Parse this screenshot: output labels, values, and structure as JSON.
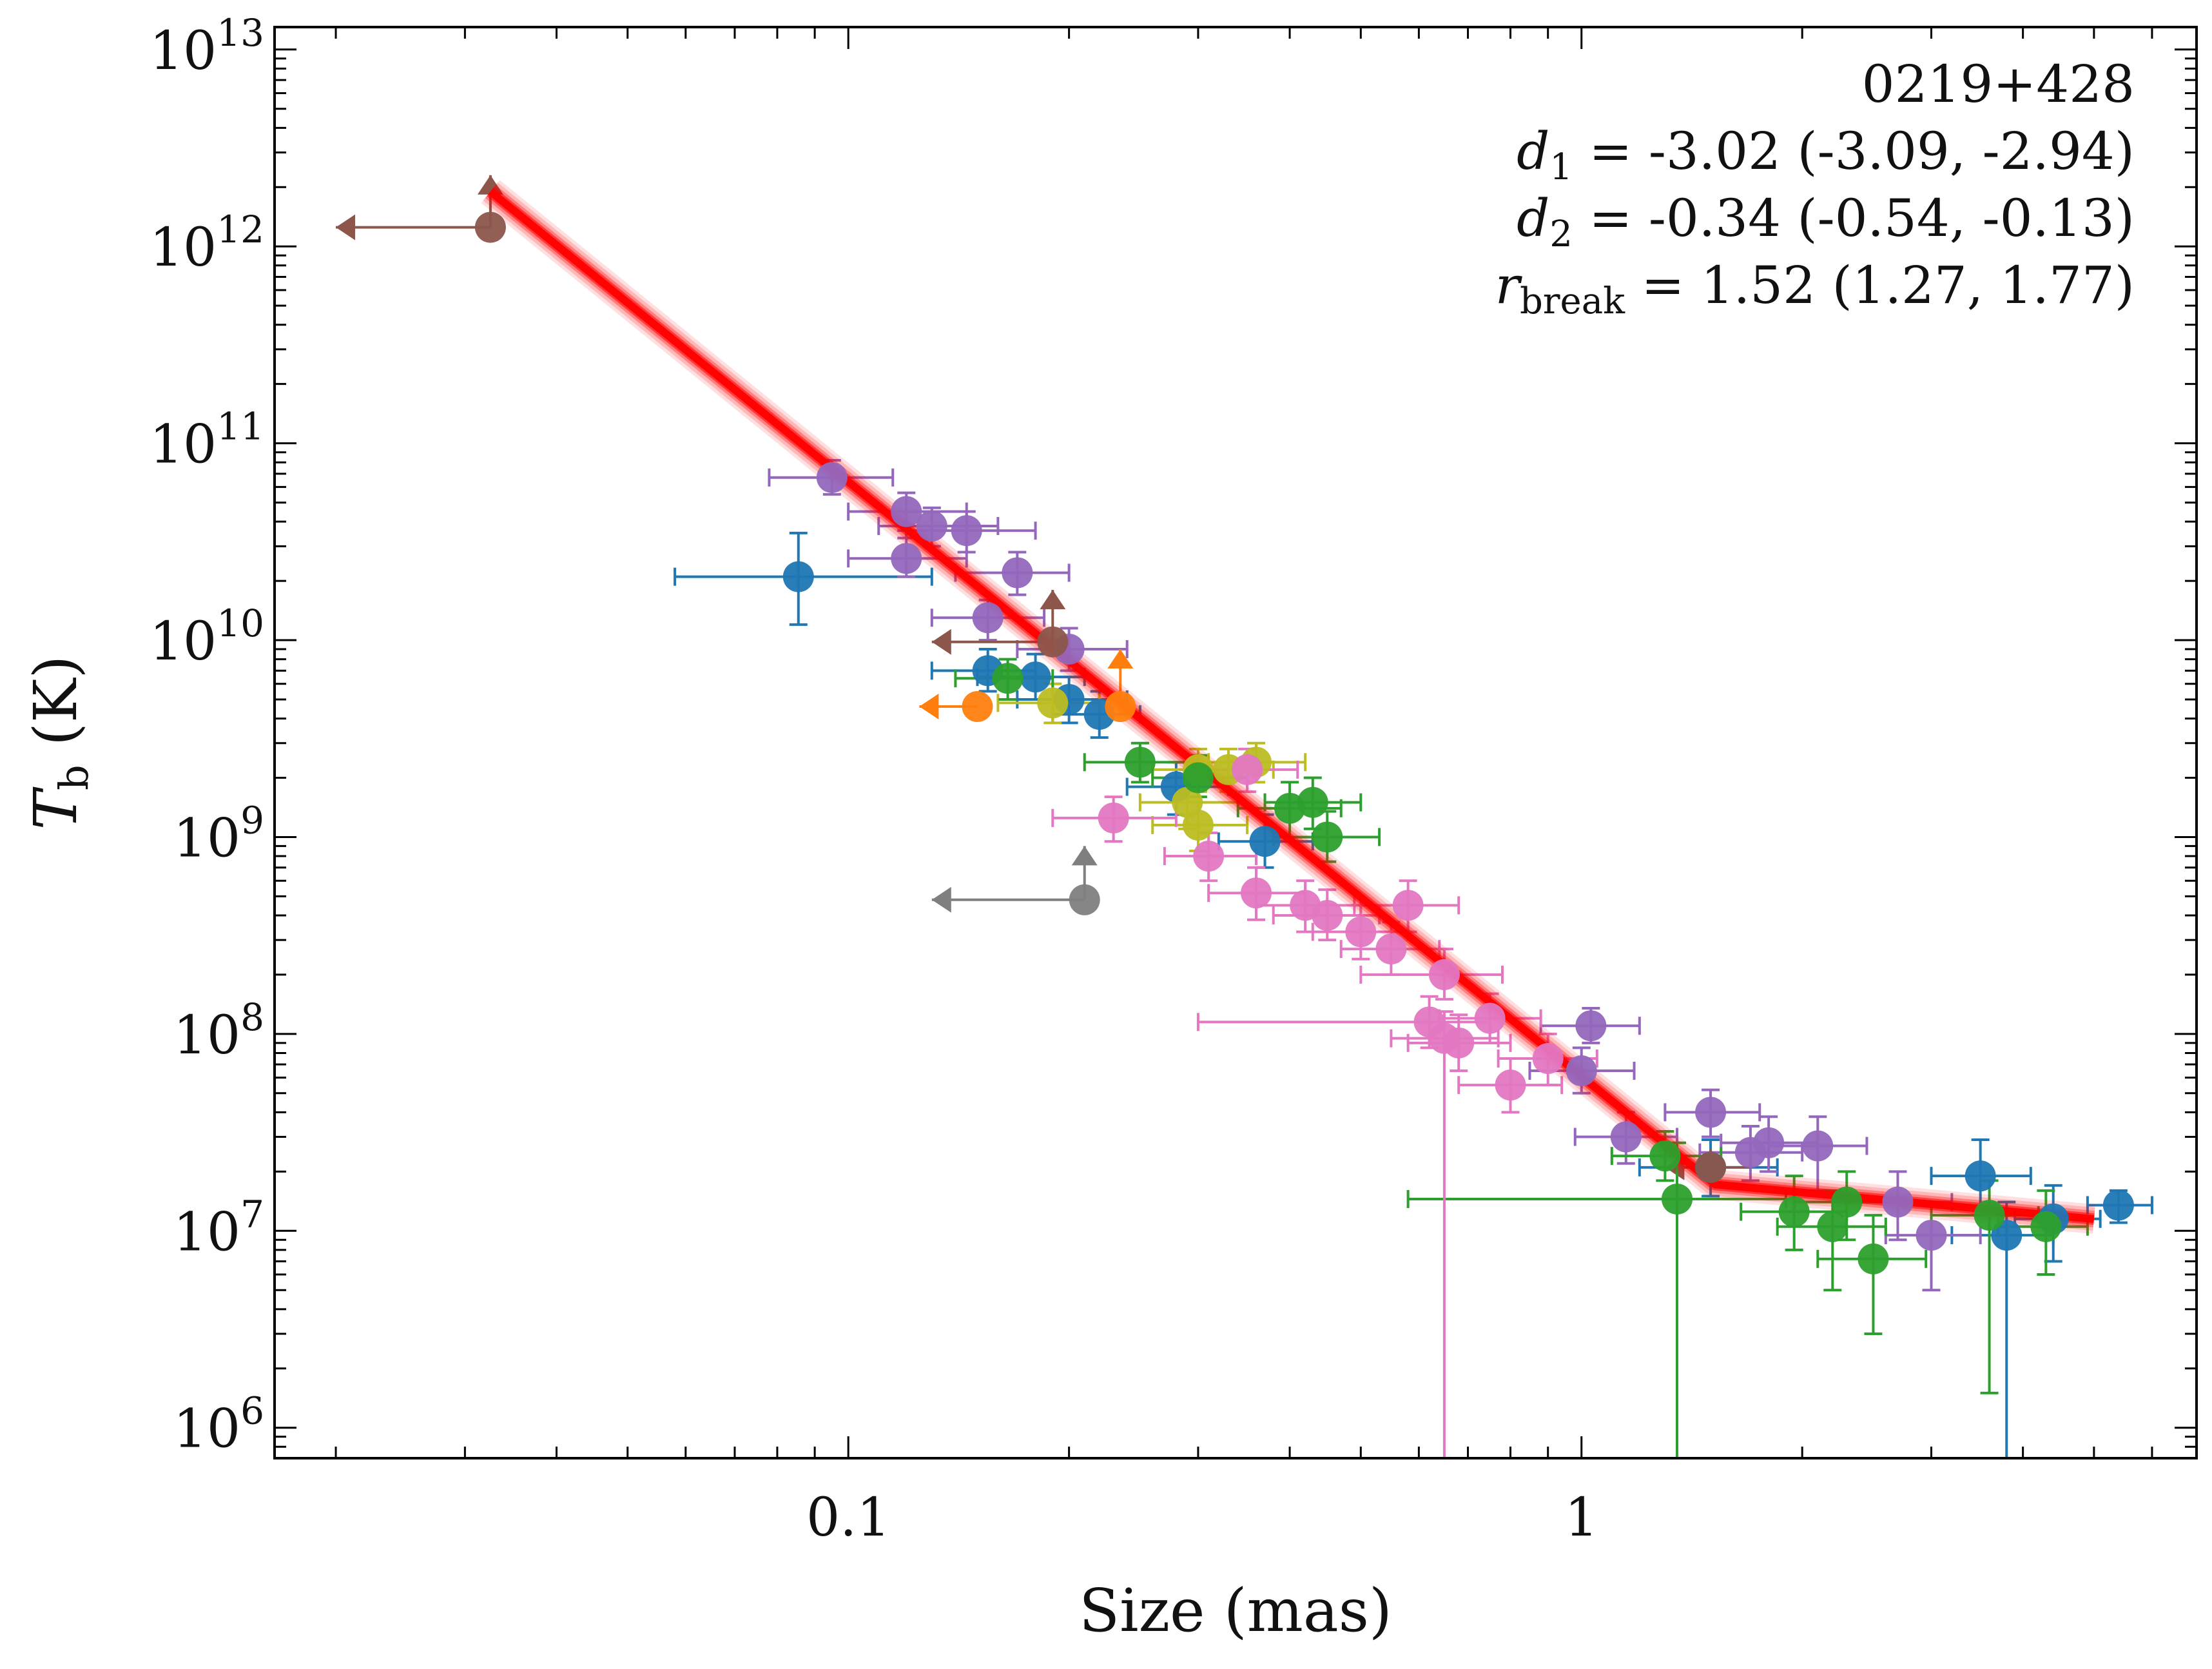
{
  "chart_data": {
    "type": "scatter",
    "title": "",
    "xlabel": "Size (mas)",
    "ylabel_symbol": "T",
    "ylabel_subscript": "b",
    "ylabel_unit": "(K)",
    "xscale": "log",
    "yscale": "log",
    "xlim": [
      0.0165,
      6.9
    ],
    "ylim": [
      700000,
      13000000000000
    ],
    "x_ticks": [
      {
        "value": 0.1,
        "label": "0.1"
      },
      {
        "value": 1,
        "label": "1"
      }
    ],
    "y_ticks": [
      {
        "value": 1000000,
        "base": "10",
        "exp": "6"
      },
      {
        "value": 10000000,
        "base": "10",
        "exp": "7"
      },
      {
        "value": 100000000,
        "base": "10",
        "exp": "8"
      },
      {
        "value": 1000000000,
        "base": "10",
        "exp": "9"
      },
      {
        "value": 10000000000,
        "base": "10",
        "exp": "10"
      },
      {
        "value": 100000000000,
        "base": "10",
        "exp": "11"
      },
      {
        "value": 1000000000000,
        "base": "10",
        "exp": "12"
      },
      {
        "value": 10000000000000,
        "base": "10",
        "exp": "13"
      }
    ],
    "annotation": {
      "source": "0219+428",
      "d1": {
        "sym": "d",
        "sub": "1",
        "text": " = -3.02 (-3.09, -2.94)"
      },
      "d2": {
        "sym": "d",
        "sub": "2",
        "text": " = -0.34 (-0.54, -0.13)"
      },
      "rbreak": {
        "sym": "r",
        "sub": "break",
        "text": " = 1.52 (1.27, 1.77)"
      }
    },
    "fit": {
      "model": "broken power law",
      "d1": -3.02,
      "d2": -0.34,
      "r_break": 1.52,
      "x_start": 0.0325,
      "x_end": 5.0,
      "y_start": 1900000000000,
      "color": "#ff0000"
    },
    "grid": false,
    "legend": "none",
    "series": [
      {
        "color": "#1f77b4",
        "points": [
          [
            0.0855,
            21000000000,
            0.058,
            0.13,
            12000000000,
            35000000000
          ],
          [
            0.18,
            6500000000,
            0.15,
            0.21,
            5000000000,
            8500000000
          ],
          [
            0.2,
            5000000000,
            0.17,
            0.24,
            3800000000,
            6500000000
          ],
          [
            0.22,
            4200000000,
            0.19,
            0.25,
            3200000000,
            5500000000
          ],
          [
            0.155,
            7000000000,
            0.13,
            0.18,
            5500000000,
            9000000000
          ],
          [
            0.28,
            1800000000,
            0.24,
            0.33,
            1300000000,
            2400000000
          ],
          [
            0.37,
            950000000,
            0.32,
            0.43,
            700000000,
            1300000000
          ],
          [
            1.5,
            21000000,
            1.2,
            1.85,
            15000000,
            29000000
          ],
          [
            3.5,
            19000000,
            3.0,
            4.1,
            12000000,
            29000000
          ],
          [
            3.8,
            9500000,
            3.2,
            4.4,
            700000,
            14000000
          ],
          [
            4.4,
            11500000,
            3.9,
            5.1,
            7000000,
            17000000
          ],
          [
            5.4,
            13500000,
            4.9,
            6.0,
            11000000,
            16000000
          ]
        ]
      },
      {
        "color": "#9467bd",
        "points": [
          [
            0.095,
            67000000000,
            0.078,
            0.115,
            55000000000,
            82000000000
          ],
          [
            0.12,
            45000000000,
            0.1,
            0.145,
            36000000000,
            56000000000
          ],
          [
            0.13,
            38000000000,
            0.11,
            0.16,
            30000000000,
            47000000000
          ],
          [
            0.145,
            36000000000,
            0.12,
            0.18,
            28000000000,
            45000000000
          ],
          [
            0.12,
            26000000000,
            0.1,
            0.145,
            21000000000,
            33000000000
          ],
          [
            0.17,
            22000000000,
            0.14,
            0.2,
            17000000000,
            28000000000
          ],
          [
            0.155,
            13000000000,
            0.13,
            0.185,
            10000000000,
            16000000000
          ],
          [
            0.2,
            9000000000,
            0.17,
            0.24,
            7000000000,
            11500000000
          ],
          [
            1.03,
            110000000,
            0.88,
            1.2,
            90000000,
            135000000
          ],
          [
            1.0,
            65000000,
            0.85,
            1.18,
            50000000,
            85000000
          ],
          [
            1.15,
            30000000,
            0.98,
            1.35,
            22000000,
            40000000
          ],
          [
            1.5,
            40000000,
            1.3,
            1.75,
            30000000,
            52000000
          ],
          [
            1.8,
            28000000,
            1.55,
            2.1,
            20000000,
            38000000
          ],
          [
            2.1,
            27000000,
            1.8,
            2.45,
            16000000,
            38000000
          ],
          [
            1.7,
            25000000,
            1.45,
            2.0,
            18000000,
            34000000
          ],
          [
            2.7,
            14000000,
            2.3,
            3.2,
            9000000,
            20000000
          ],
          [
            3.0,
            9500000,
            2.6,
            3.5,
            5000000,
            14000000
          ]
        ]
      },
      {
        "color": "#8c564b",
        "points": [
          [
            0.0325,
            1250000000000,
            0.02,
            0.0325,
            1250000000000,
            2300000000000
          ],
          [
            0.19,
            9800000000,
            0.13,
            0.19,
            9800000000,
            18000000000
          ],
          [
            1.5,
            21000000,
            1.3,
            1.7,
            17000000,
            26000000
          ]
        ]
      },
      {
        "color": "#ff7f0e",
        "points": [
          [
            0.235,
            4600000000,
            0.235,
            0.235,
            4600000000,
            9000000000
          ],
          [
            0.15,
            4600000000,
            0.125,
            0.15,
            4600000000,
            4600000000
          ]
        ]
      },
      {
        "color": "#bcbd22",
        "points": [
          [
            0.3,
            2200000000,
            0.26,
            0.35,
            1700000000,
            2800000000
          ],
          [
            0.33,
            2200000000,
            0.29,
            0.38,
            1700000000,
            2800000000
          ],
          [
            0.36,
            2400000000,
            0.31,
            0.42,
            1900000000,
            3000000000
          ],
          [
            0.29,
            1500000000,
            0.25,
            0.34,
            1100000000,
            2000000000
          ],
          [
            0.3,
            1150000000,
            0.26,
            0.35,
            850000000,
            1500000000
          ],
          [
            0.19,
            4800000000,
            0.16,
            0.22,
            3800000000,
            6000000000
          ]
        ]
      },
      {
        "color": "#2ca02c",
        "points": [
          [
            0.165,
            6400000000,
            0.14,
            0.19,
            5000000000,
            8000000000
          ],
          [
            0.25,
            2400000000,
            0.21,
            0.29,
            1900000000,
            3000000000
          ],
          [
            0.3,
            2000000000,
            0.26,
            0.35,
            1600000000,
            2600000000
          ],
          [
            0.4,
            1400000000,
            0.34,
            0.47,
            1000000000,
            1900000000
          ],
          [
            0.43,
            1500000000,
            0.37,
            0.5,
            1100000000,
            2000000000
          ],
          [
            0.45,
            1000000000,
            0.38,
            0.53,
            750000000,
            1350000000
          ],
          [
            1.35,
            14500000,
            0.58,
            1.9,
            700000,
            28000000
          ],
          [
            1.3,
            24000000,
            1.1,
            1.55,
            18000000,
            32000000
          ],
          [
            1.95,
            12500000,
            1.65,
            2.3,
            8000000,
            19000000
          ],
          [
            2.2,
            10500000,
            1.85,
            2.6,
            5000000,
            16000000
          ],
          [
            2.5,
            7200000,
            2.1,
            2.95,
            3000000,
            12000000
          ],
          [
            2.3,
            14000000,
            1.95,
            2.7,
            9000000,
            20000000
          ],
          [
            3.6,
            12000000,
            3.0,
            4.2,
            1500000,
            18000000
          ],
          [
            4.3,
            10500000,
            3.7,
            4.9,
            6000000,
            16000000
          ]
        ]
      },
      {
        "color": "#e377c2",
        "points": [
          [
            0.23,
            1250000000,
            0.19,
            0.28,
            950000000,
            1600000000
          ],
          [
            0.35,
            2200000000,
            0.3,
            0.41,
            1700000000,
            2800000000
          ],
          [
            0.31,
            800000000,
            0.27,
            0.36,
            600000000,
            1050000000
          ],
          [
            0.36,
            520000000,
            0.31,
            0.42,
            380000000,
            700000000
          ],
          [
            0.42,
            450000000,
            0.36,
            0.49,
            330000000,
            600000000
          ],
          [
            0.45,
            400000000,
            0.38,
            0.53,
            300000000,
            540000000
          ],
          [
            0.5,
            330000000,
            0.43,
            0.58,
            240000000,
            450000000
          ],
          [
            0.55,
            270000000,
            0.47,
            0.64,
            200000000,
            370000000
          ],
          [
            0.58,
            450000000,
            0.5,
            0.68,
            330000000,
            600000000
          ],
          [
            0.65,
            200000000,
            0.5,
            0.78,
            150000000,
            270000000
          ],
          [
            0.62,
            115000000,
            0.3,
            0.75,
            85000000,
            155000000
          ],
          [
            0.65,
            95000000,
            0.55,
            0.77,
            700000,
            130000000
          ],
          [
            0.68,
            90000000,
            0.58,
            0.8,
            65000000,
            125000000
          ],
          [
            0.75,
            120000000,
            0.64,
            0.88,
            90000000,
            160000000
          ],
          [
            0.8,
            55000000,
            0.68,
            0.94,
            40000000,
            75000000
          ],
          [
            0.9,
            75000000,
            0.77,
            1.05,
            55000000,
            100000000
          ]
        ]
      },
      {
        "color": "#7f7f7f",
        "points": [
          [
            0.21,
            480000000,
            0.13,
            0.21,
            480000000,
            900000000
          ]
        ]
      }
    ]
  }
}
